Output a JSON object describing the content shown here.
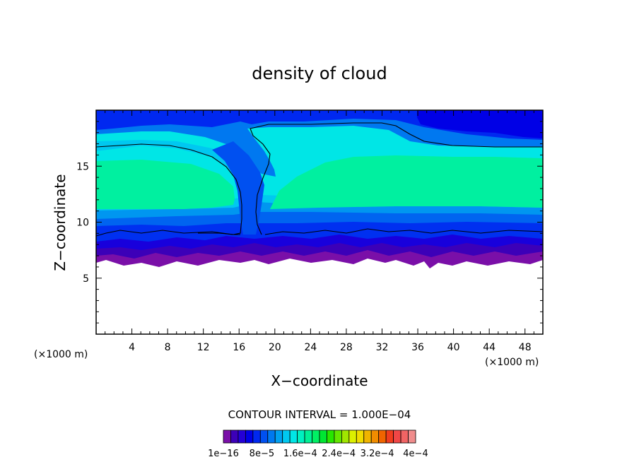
{
  "chart_data": {
    "type": "heatmap",
    "title": "density of cloud",
    "xlabel": "X−coordinate",
    "ylabel": "Z−coordinate",
    "x_unit": "(×1000 m)",
    "y_unit": "(×1000 m)",
    "xlim": [
      0,
      50
    ],
    "ylim": [
      0,
      20
    ],
    "x_ticks": [
      4,
      8,
      12,
      16,
      20,
      24,
      28,
      32,
      36,
      40,
      44,
      48
    ],
    "y_ticks": [
      5,
      10,
      15
    ],
    "contour_interval": "CONTOUR INTERVAL = 1.000E−04",
    "colorbar_labels": [
      "1e−16",
      "8e−5",
      "1.6e−4",
      "2.4e−4",
      "3.2e−4",
      "4e−4"
    ],
    "colors": [
      "#7a0fa8",
      "#3c00b8",
      "#2400d6",
      "#0000e6",
      "#0028f0",
      "#0050f0",
      "#0078f0",
      "#00a0f0",
      "#00c8f0",
      "#00e6e6",
      "#00f0c0",
      "#00f096",
      "#00f064",
      "#00e632",
      "#28e600",
      "#64e600",
      "#a0e600",
      "#dcf000",
      "#f0dc00",
      "#f0b400",
      "#f08c00",
      "#f06400",
      "#f03c1e",
      "#f04646",
      "#f06464",
      "#f08c8c"
    ],
    "cloud_base_km": 6.5,
    "cloud_top_km": 19.5,
    "peak_band_km": [
      11.5,
      15.5
    ]
  }
}
